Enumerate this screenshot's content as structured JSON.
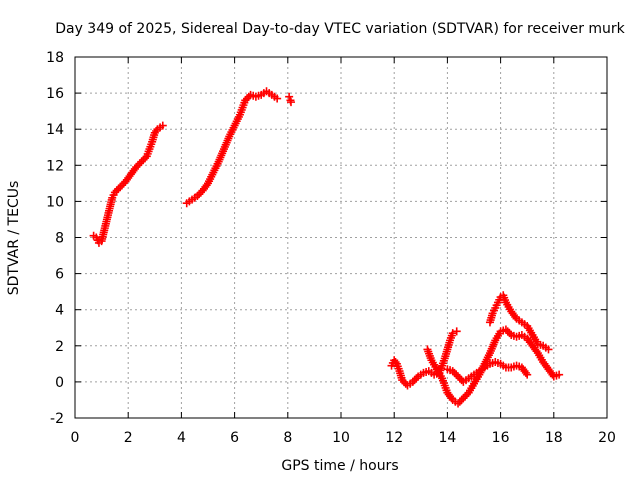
{
  "chart_data": {
    "type": "scatter",
    "title": "Day 349 of 2025, Sidereal Day-to-day VTEC variation (SDTVAR) for receiver murk",
    "xlabel": "GPS time / hours",
    "ylabel": "SDTVAR / TECUs",
    "xlim": [
      0,
      20
    ],
    "ylim": [
      -2,
      18
    ],
    "xticks": [
      "0",
      "2",
      "4",
      "6",
      "8",
      "10",
      "12",
      "14",
      "16",
      "18",
      "20"
    ],
    "yticks": [
      "-2",
      "0",
      "2",
      "4",
      "6",
      "8",
      "10",
      "12",
      "14",
      "16",
      "18"
    ],
    "grid": true,
    "marker": "plus",
    "color": "#ff0000",
    "series": [
      {
        "values": [
          [
            0.7,
            8.1
          ],
          [
            0.8,
            8.0
          ],
          [
            0.9,
            7.7
          ],
          [
            1.0,
            7.8
          ],
          [
            1.1,
            8.4
          ],
          [
            1.2,
            9.0
          ],
          [
            1.3,
            9.6
          ],
          [
            1.4,
            10.2
          ],
          [
            1.5,
            10.5
          ],
          [
            1.7,
            10.8
          ],
          [
            1.9,
            11.1
          ],
          [
            2.1,
            11.5
          ],
          [
            2.3,
            11.9
          ],
          [
            2.5,
            12.2
          ],
          [
            2.7,
            12.5
          ],
          [
            2.8,
            12.9
          ],
          [
            2.9,
            13.3
          ],
          [
            3.0,
            13.8
          ],
          [
            3.1,
            14.0
          ],
          [
            3.3,
            14.2
          ],
          [
            4.2,
            9.9
          ],
          [
            4.4,
            10.1
          ],
          [
            4.6,
            10.3
          ],
          [
            4.8,
            10.6
          ],
          [
            5.0,
            11.0
          ],
          [
            5.2,
            11.6
          ],
          [
            5.4,
            12.2
          ],
          [
            5.6,
            12.9
          ],
          [
            5.8,
            13.6
          ],
          [
            6.0,
            14.2
          ],
          [
            6.2,
            14.8
          ],
          [
            6.4,
            15.6
          ],
          [
            6.6,
            15.9
          ],
          [
            6.8,
            15.8
          ],
          [
            7.0,
            15.9
          ],
          [
            7.2,
            16.1
          ],
          [
            7.4,
            15.9
          ],
          [
            7.6,
            15.7
          ],
          [
            8.05,
            15.8
          ],
          [
            8.1,
            15.6
          ],
          [
            8.12,
            15.5
          ],
          [
            11.9,
            0.9
          ],
          [
            12.0,
            1.2
          ],
          [
            12.1,
            1.0
          ],
          [
            12.2,
            0.6
          ],
          [
            12.3,
            0.1
          ],
          [
            12.5,
            -0.2
          ],
          [
            12.7,
            0.0
          ],
          [
            12.9,
            0.3
          ],
          [
            13.1,
            0.5
          ],
          [
            13.3,
            0.6
          ],
          [
            13.5,
            0.4
          ],
          [
            13.7,
            0.5
          ],
          [
            13.9,
            1.3
          ],
          [
            14.1,
            2.3
          ],
          [
            14.2,
            2.7
          ],
          [
            14.35,
            2.8
          ],
          [
            13.25,
            1.8
          ],
          [
            13.4,
            1.2
          ],
          [
            13.6,
            0.7
          ],
          [
            13.8,
            0.2
          ],
          [
            14.0,
            -0.6
          ],
          [
            14.2,
            -1.0
          ],
          [
            14.4,
            -1.2
          ],
          [
            14.6,
            -0.9
          ],
          [
            14.8,
            -0.6
          ],
          [
            15.0,
            -0.1
          ],
          [
            15.2,
            0.4
          ],
          [
            15.4,
            1.0
          ],
          [
            15.6,
            1.6
          ],
          [
            15.8,
            2.3
          ],
          [
            16.0,
            2.8
          ],
          [
            16.2,
            2.9
          ],
          [
            16.4,
            2.6
          ],
          [
            16.6,
            2.5
          ],
          [
            16.8,
            2.6
          ],
          [
            17.0,
            2.4
          ],
          [
            17.2,
            2.0
          ],
          [
            17.4,
            1.6
          ],
          [
            17.6,
            1.1
          ],
          [
            17.8,
            0.7
          ],
          [
            18.0,
            0.3
          ],
          [
            18.2,
            0.4
          ],
          [
            14.0,
            0.7
          ],
          [
            14.2,
            0.6
          ],
          [
            14.4,
            0.3
          ],
          [
            14.6,
            0.0
          ],
          [
            14.8,
            0.2
          ],
          [
            15.0,
            0.4
          ],
          [
            15.2,
            0.6
          ],
          [
            15.4,
            0.8
          ],
          [
            15.6,
            1.0
          ],
          [
            15.8,
            1.1
          ],
          [
            16.0,
            1.0
          ],
          [
            16.2,
            0.8
          ],
          [
            16.4,
            0.8
          ],
          [
            16.6,
            0.9
          ],
          [
            16.8,
            0.8
          ],
          [
            17.0,
            0.4
          ],
          [
            15.6,
            3.3
          ],
          [
            15.7,
            3.8
          ],
          [
            15.8,
            4.1
          ],
          [
            15.9,
            4.4
          ],
          [
            16.0,
            4.7
          ],
          [
            16.1,
            4.8
          ],
          [
            16.2,
            4.4
          ],
          [
            16.4,
            3.9
          ],
          [
            16.6,
            3.5
          ],
          [
            16.8,
            3.3
          ],
          [
            17.0,
            3.1
          ],
          [
            17.2,
            2.6
          ],
          [
            17.4,
            2.1
          ],
          [
            17.6,
            2.0
          ],
          [
            17.8,
            1.8
          ]
        ]
      }
    ]
  }
}
